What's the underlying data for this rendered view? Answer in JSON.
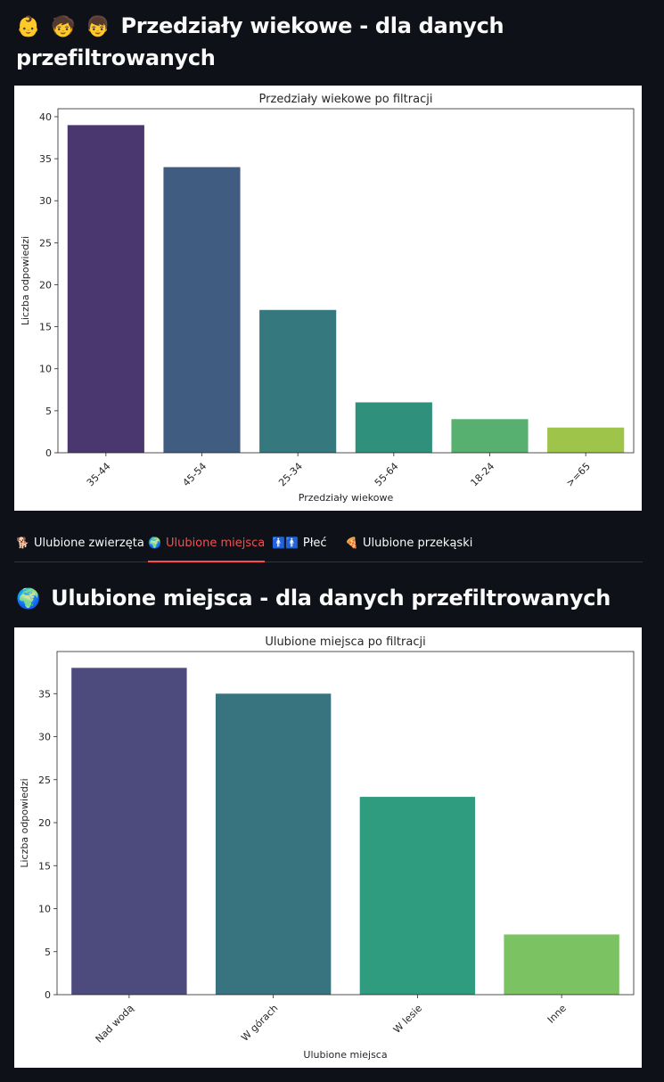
{
  "section_age": {
    "icons": [
      "baby-emoji",
      "child-emoji",
      "boy-emoji"
    ],
    "icon_glyphs": [
      "👶",
      "🧒",
      "👦"
    ],
    "title": "Przedziały wiekowe - dla danych przefiltrowanych"
  },
  "tabs": [
    {
      "label": "Ulubione zwierzęta",
      "icon": "dog-icon",
      "glyph": "🐕",
      "active": false
    },
    {
      "label": "Ulubione miejsca",
      "icon": "globe-icon",
      "glyph": "🌍",
      "active": true
    },
    {
      "label": "Płeć",
      "icon": "restroom-icon",
      "glyph": "🚹🚹",
      "active": false
    },
    {
      "label": "Ulubione przekąski",
      "icon": "pizza-icon",
      "glyph": "🍕",
      "active": false
    }
  ],
  "section_places": {
    "icon": "globe-icon",
    "icon_glyph": "🌍",
    "title": "Ulubione miejsca - dla danych przefiltrowanych"
  },
  "chart_data": [
    {
      "type": "bar",
      "title": "Przedziały wiekowe po filtracji",
      "xlabel": "Przedziały wiekowe",
      "ylabel": "Liczba odpowiedzi",
      "categories": [
        "35-44",
        "45-54",
        "25-34",
        "55-64",
        "18-24",
        ">=65"
      ],
      "values": [
        39,
        34,
        17,
        6,
        4,
        3
      ],
      "colors": [
        "#4a376f",
        "#405c80",
        "#35787e",
        "#2f917c",
        "#57b06f",
        "#9ec54a"
      ],
      "yticks": [
        0,
        5,
        10,
        15,
        20,
        25,
        30,
        35,
        40
      ],
      "ylim": [
        0,
        40.95
      ],
      "grid": false
    },
    {
      "type": "bar",
      "title": "Ulubione miejsca po filtracji",
      "xlabel": "Ulubione miejsca",
      "ylabel": "Liczba odpowiedzi",
      "categories": [
        "Nad wodą",
        "W górach",
        "W lesie",
        "Inne"
      ],
      "values": [
        38,
        35,
        23,
        7
      ],
      "colors": [
        "#4d4b7e",
        "#38747f",
        "#2f9c7f",
        "#7bc262"
      ],
      "yticks": [
        0,
        5,
        10,
        15,
        20,
        25,
        30,
        35
      ],
      "ylim": [
        0,
        39.9
      ],
      "grid": false
    }
  ]
}
